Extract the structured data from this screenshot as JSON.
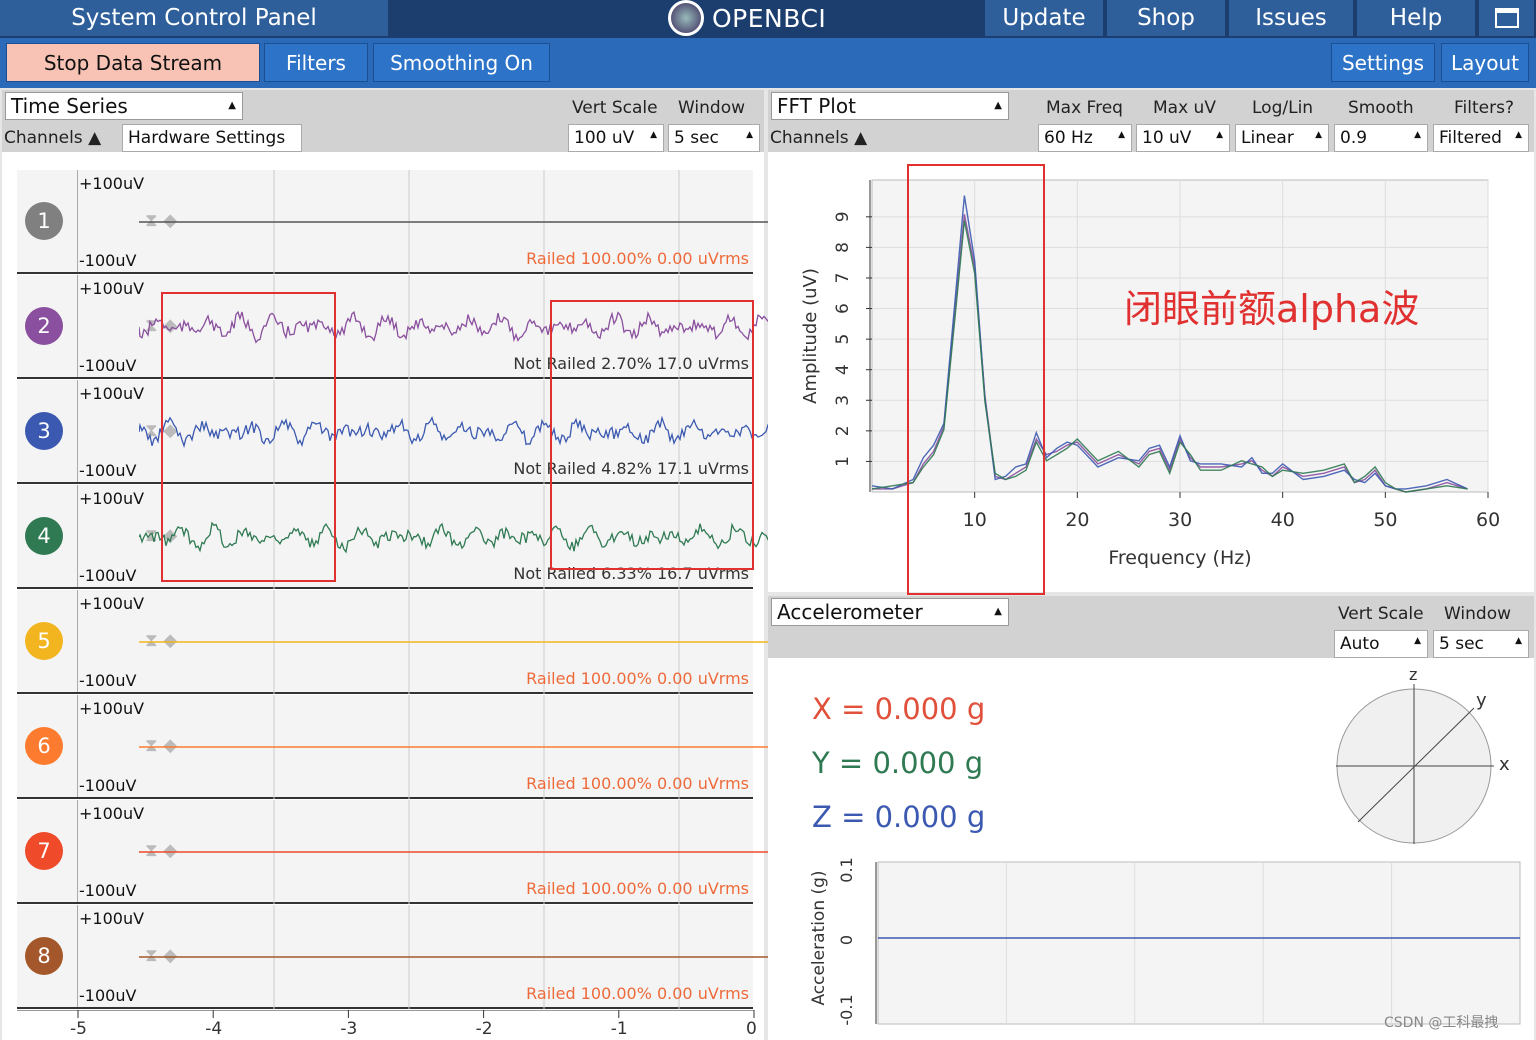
{
  "topbar": {
    "title": "System Control Panel",
    "logo": "OPENBCI",
    "update": "Update",
    "shop": "Shop",
    "issues": "Issues",
    "help": "Help",
    "window_icon": "window-icon"
  },
  "controls": {
    "stop": "Stop Data Stream",
    "filters": "Filters",
    "smoothing": "Smoothing On",
    "settings": "Settings",
    "layout": "Layout"
  },
  "timeseries": {
    "widget": "Time Series",
    "vert_scale_label": "Vert Scale",
    "window_label": "Window",
    "channels": "Channels",
    "hw_settings": "Hardware Settings",
    "vert_scale": "100 uV",
    "window": "5 sec",
    "top_label": "+100uV",
    "bottom_label": "-100uV",
    "channels_list": [
      {
        "num": "1",
        "color": "#808080",
        "status": "Railed 100.00% 0.00 uVrms",
        "railed": true,
        "line": "#555555"
      },
      {
        "num": "2",
        "color": "#8a4f9e",
        "status": "Not Railed 2.70% 17.0 uVrms",
        "railed": false,
        "line": "#8a4f9e"
      },
      {
        "num": "3",
        "color": "#3b59b0",
        "status": "Not Railed 4.82% 17.1 uVrms",
        "railed": false,
        "line": "#3b59b0"
      },
      {
        "num": "4",
        "color": "#2f7a52",
        "status": "Not Railed 6.33% 16.7 uVrms",
        "railed": false,
        "line": "#2f7a52"
      },
      {
        "num": "5",
        "color": "#f2b51f",
        "status": "Railed 100.00% 0.00 uVrms",
        "railed": true,
        "line": "#f2b51f"
      },
      {
        "num": "6",
        "color": "#fc7b2e",
        "status": "Railed 100.00% 0.00 uVrms",
        "railed": true,
        "line": "#fc7b2e"
      },
      {
        "num": "7",
        "color": "#ef4a2a",
        "status": "Railed 100.00% 0.00 uVrms",
        "railed": true,
        "line": "#ef4a2a"
      },
      {
        "num": "8",
        "color": "#a4572b",
        "status": "Railed 100.00% 0.00 uVrms",
        "railed": true,
        "line": "#a4572b"
      }
    ],
    "xticks": [
      "-5",
      "-4",
      "-3",
      "-2",
      "-1",
      "0"
    ]
  },
  "fft": {
    "widget": "FFT Plot",
    "channels": "Channels",
    "max_freq_label": "Max Freq",
    "max_uv_label": "Max uV",
    "loglin_label": "Log/Lin",
    "smooth_label": "Smooth",
    "filters_label": "Filters?",
    "max_freq": "60 Hz",
    "max_uv": "10 uV",
    "loglin": "Linear",
    "smooth": "0.9",
    "filtered": "Filtered",
    "annotation": "闭眼前额alpha波",
    "chart_data": {
      "type": "line",
      "xlabel": "Frequency (Hz)",
      "ylabel": "Amplitude (uV)",
      "xlim": [
        0,
        60
      ],
      "ylim": [
        0,
        10
      ],
      "xticks": [
        "10",
        "20",
        "30",
        "40",
        "50",
        "60"
      ],
      "yticks": [
        "1",
        "2",
        "3",
        "4",
        "5",
        "6",
        "7",
        "8",
        "9"
      ],
      "x": [
        0,
        2,
        4,
        5,
        6,
        7,
        8,
        9,
        10,
        11,
        12,
        13,
        14,
        15,
        16,
        17,
        18,
        19,
        20,
        22,
        24,
        26,
        27,
        28,
        29,
        30,
        31,
        32,
        34,
        36,
        37,
        38,
        39,
        40,
        42,
        44,
        46,
        47,
        48,
        49,
        50,
        51,
        52,
        54,
        56,
        58
      ],
      "series": [
        {
          "values": [
            0.1,
            0.1,
            0.3,
            0.9,
            1.3,
            2.1,
            5.5,
            8.9,
            7.2,
            3.1,
            0.5,
            0.4,
            0.6,
            0.8,
            1.7,
            1.2,
            1.3,
            1.5,
            1.6,
            0.9,
            1.2,
            0.9,
            1.3,
            1.4,
            0.7,
            1.7,
            1.1,
            0.8,
            0.8,
            0.9,
            1.0,
            0.7,
            0.5,
            0.8,
            0.5,
            0.6,
            0.8,
            0.3,
            0.4,
            0.7,
            0.2,
            0.1,
            0.0,
            0.1,
            0.3,
            0.1
          ]
        },
        {
          "values": [
            0.2,
            0.1,
            0.4,
            1.1,
            1.5,
            2.2,
            5.8,
            9.5,
            7.4,
            3.0,
            0.4,
            0.5,
            0.8,
            0.9,
            1.9,
            1.1,
            1.4,
            1.6,
            1.5,
            0.8,
            1.1,
            1.0,
            1.4,
            1.5,
            0.8,
            1.8,
            1.0,
            0.9,
            0.9,
            0.8,
            1.1,
            0.6,
            0.6,
            0.9,
            0.4,
            0.5,
            0.7,
            0.4,
            0.3,
            0.6,
            0.2,
            0.1,
            0.1,
            0.2,
            0.4,
            0.1
          ]
        },
        {
          "values": [
            0.1,
            0.2,
            0.3,
            0.8,
            1.2,
            2.0,
            5.3,
            8.7,
            7.0,
            2.9,
            0.6,
            0.4,
            0.5,
            0.7,
            1.6,
            1.0,
            1.2,
            1.4,
            1.7,
            1.0,
            1.3,
            0.8,
            1.2,
            1.3,
            0.6,
            1.6,
            1.2,
            0.7,
            0.7,
            1.0,
            0.9,
            0.8,
            0.5,
            0.7,
            0.6,
            0.7,
            0.9,
            0.3,
            0.5,
            0.8,
            0.3,
            0.1,
            0.0,
            0.1,
            0.2,
            0.1
          ]
        }
      ]
    }
  },
  "accel": {
    "widget": "Accelerometer",
    "vert_scale_label": "Vert Scale",
    "window_label": "Window",
    "vert_scale": "Auto",
    "window": "5 sec",
    "x": "X = 0.000 g",
    "y": "Y = 0.000 g",
    "z": "Z = 0.000 g",
    "z_axis": "z",
    "y_axis": "y",
    "x_axis": "x",
    "ylabel": "Acceleration (g)",
    "yticks": [
      "0.1",
      "0",
      "-0.1"
    ]
  },
  "watermark": "CSDN @工科最拽"
}
